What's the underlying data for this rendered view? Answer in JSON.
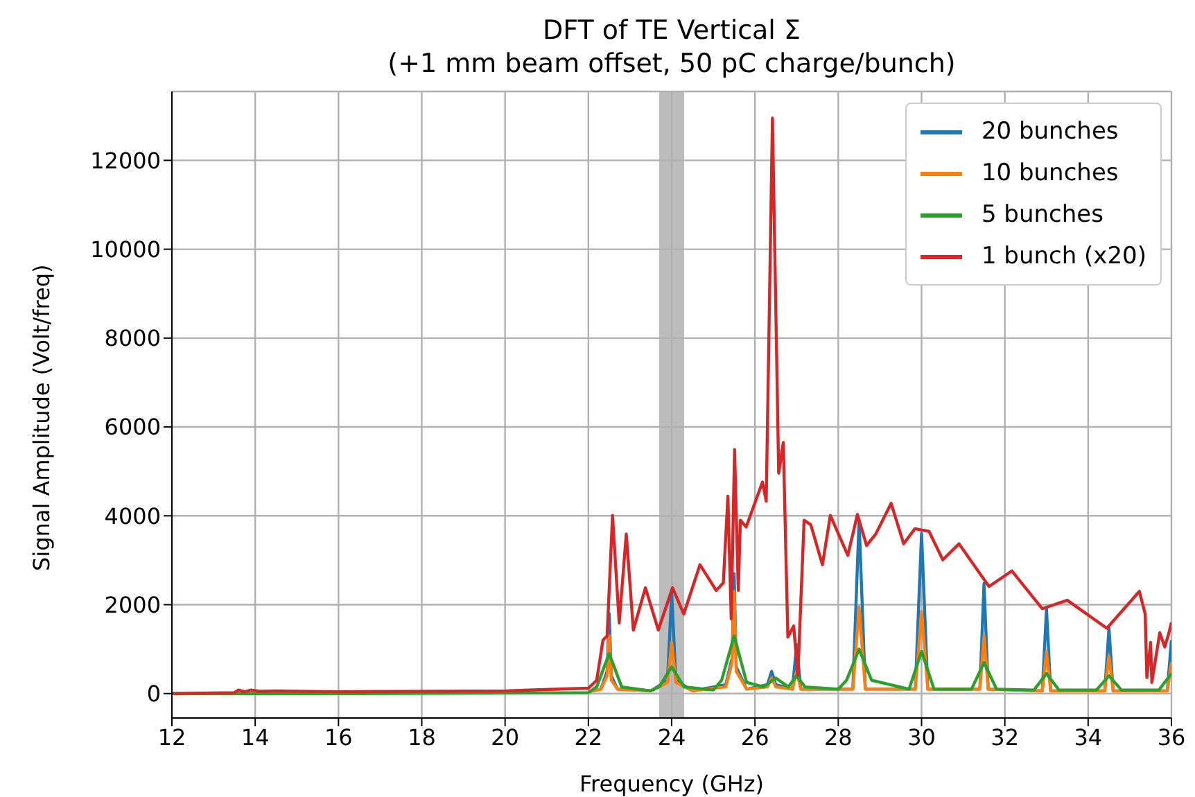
{
  "chart_data": {
    "type": "line",
    "title": "DFT of TE Vertical Σ\n(+1 mm beam offset, 50 pC charge/bunch)",
    "xlabel": "Frequency (GHz)",
    "ylabel": "Signal Amplitude (Volt/freq)",
    "xlim": [
      12,
      36
    ],
    "ylim": [
      -550,
      13550
    ],
    "xticks": [
      12,
      14,
      16,
      18,
      20,
      22,
      24,
      26,
      28,
      30,
      32,
      34,
      36
    ],
    "yticks": [
      0,
      2000,
      4000,
      6000,
      8000,
      10000,
      12000
    ],
    "grid": true,
    "legend": "top right",
    "bands": [
      {
        "axis": "x",
        "from": 23.7,
        "to": 24.3,
        "color": "#b0b0b0"
      }
    ],
    "series": [
      {
        "name": "20 bunches",
        "color": "#1f77b4",
        "x": [
          22,
          22.3,
          22.45,
          22.5,
          22.55,
          22.7,
          23.5,
          23.9,
          24,
          24.1,
          24.5,
          25.3,
          25.45,
          25.5,
          25.55,
          25.8,
          26.3,
          26.4,
          26.5,
          26.9,
          27,
          27.1,
          28.35,
          28.5,
          28.65,
          29.85,
          30,
          30.15,
          31.4,
          31.5,
          31.6,
          32.9,
          33,
          33.1,
          34.4,
          34.5,
          34.6,
          35.9,
          36
        ],
        "values": [
          40,
          100,
          500,
          1800,
          400,
          100,
          60,
          300,
          2260,
          300,
          60,
          200,
          800,
          2700,
          600,
          100,
          200,
          500,
          200,
          100,
          1100,
          100,
          100,
          3900,
          100,
          100,
          3600,
          100,
          100,
          2480,
          100,
          60,
          1900,
          60,
          60,
          1470,
          60,
          60,
          1200
        ]
      },
      {
        "name": "10 bunches",
        "color": "#ff7f0e",
        "x": [
          22,
          22.3,
          22.45,
          22.5,
          22.55,
          22.7,
          23.5,
          23.9,
          24,
          24.1,
          24.5,
          25.3,
          25.45,
          25.5,
          25.55,
          25.8,
          26.3,
          26.4,
          26.5,
          26.9,
          27,
          27.1,
          28.35,
          28.5,
          28.65,
          29.85,
          30,
          30.15,
          31.4,
          31.5,
          31.6,
          32.9,
          33,
          33.1,
          34.4,
          34.5,
          34.6,
          35.9,
          36
        ],
        "values": [
          40,
          100,
          400,
          1300,
          300,
          100,
          60,
          250,
          1150,
          250,
          60,
          150,
          700,
          2300,
          500,
          100,
          150,
          350,
          150,
          100,
          500,
          100,
          100,
          1950,
          100,
          100,
          1850,
          100,
          100,
          1300,
          100,
          60,
          950,
          60,
          60,
          850,
          60,
          60,
          700
        ]
      },
      {
        "name": "5 bunches",
        "color": "#2ca02c",
        "x": [
          12,
          16,
          20,
          22,
          22.2,
          22.5,
          22.8,
          23.5,
          23.7,
          24,
          24.3,
          25,
          25.2,
          25.5,
          25.8,
          26.2,
          26.5,
          26.8,
          27,
          27.2,
          28,
          28.2,
          28.5,
          28.8,
          29.7,
          30,
          30.3,
          31.2,
          31.5,
          31.8,
          32.7,
          33,
          33.3,
          34.2,
          34.5,
          34.8,
          35.7,
          36
        ],
        "values": [
          0,
          0,
          10,
          20,
          150,
          900,
          150,
          60,
          150,
          600,
          150,
          80,
          300,
          1300,
          250,
          150,
          350,
          150,
          400,
          150,
          100,
          300,
          1000,
          300,
          100,
          950,
          100,
          100,
          700,
          100,
          80,
          450,
          80,
          80,
          400,
          80,
          80,
          450
        ]
      },
      {
        "name": "1 bunch (x20)",
        "color": "#d62728",
        "x": [
          12,
          13.5,
          13.6,
          13.75,
          13.9,
          14.1,
          14.5,
          16,
          20,
          22,
          22.2,
          22.35,
          22.45,
          22.58,
          22.74,
          22.91,
          23.08,
          23.37,
          23.68,
          24.02,
          24.29,
          24.68,
          25.07,
          25.24,
          25.35,
          25.43,
          25.51,
          25.6,
          25.65,
          25.79,
          26.18,
          26.27,
          26.42,
          26.57,
          26.68,
          26.79,
          26.93,
          27.03,
          27.18,
          27.34,
          27.62,
          27.81,
          28.23,
          28.46,
          28.68,
          28.9,
          29.27,
          29.57,
          29.84,
          30.18,
          30.51,
          30.9,
          31.62,
          32.17,
          32.9,
          33.5,
          34.45,
          35.23,
          35.37,
          35.41,
          35.5,
          35.53,
          35.72,
          35.84,
          35.94,
          36
        ],
        "values": [
          0,
          20,
          80,
          40,
          80,
          50,
          60,
          40,
          60,
          120,
          300,
          1200,
          1300,
          4010,
          1590,
          3590,
          1430,
          2380,
          1430,
          2380,
          1790,
          2900,
          2320,
          2490,
          4440,
          1680,
          5490,
          2320,
          3900,
          3750,
          4760,
          4330,
          12950,
          4960,
          5650,
          1270,
          1520,
          410,
          3900,
          3800,
          2900,
          4010,
          3110,
          4030,
          3330,
          3590,
          4280,
          3370,
          3710,
          3650,
          3010,
          3370,
          2410,
          2760,
          1910,
          2100,
          1470,
          2300,
          1790,
          360,
          1150,
          250,
          1370,
          1050,
          1370,
          1600
        ]
      }
    ]
  }
}
